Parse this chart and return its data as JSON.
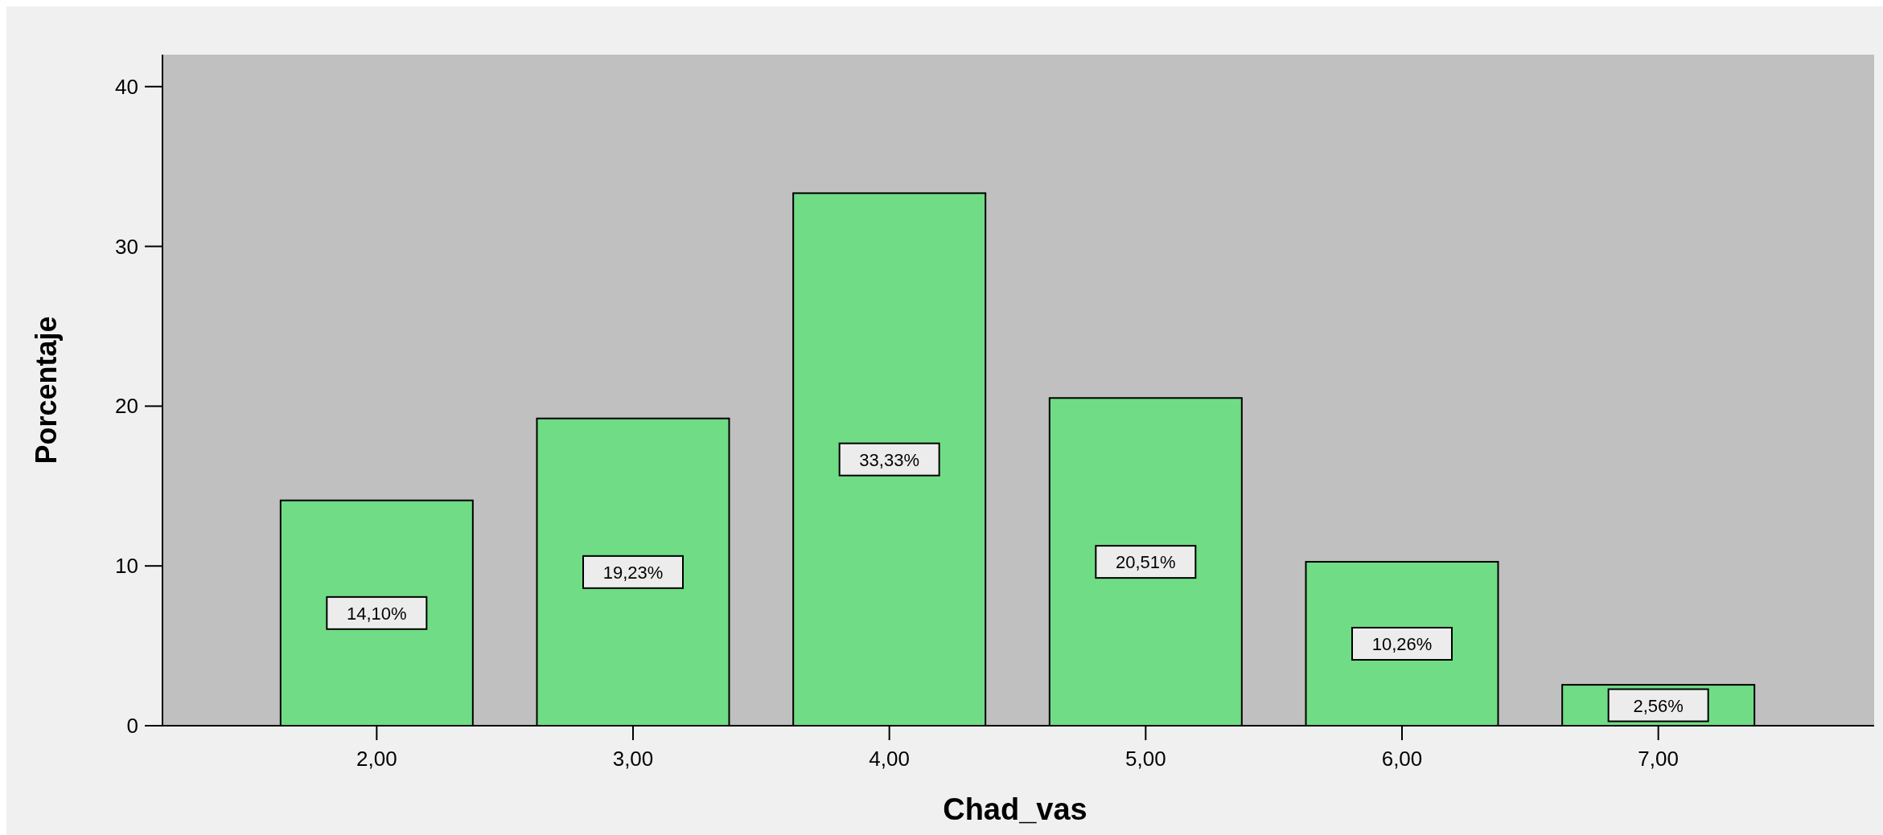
{
  "chart_data": {
    "type": "bar",
    "xlabel": "Chad_vas",
    "ylabel": "Porcentaje",
    "categories": [
      "2,00",
      "3,00",
      "4,00",
      "5,00",
      "6,00",
      "7,00"
    ],
    "values": [
      14.1,
      19.23,
      33.33,
      20.51,
      10.26,
      2.56
    ],
    "value_labels": [
      "14,10%",
      "19,23%",
      "33,33%",
      "20,51%",
      "10,26%",
      "2,56%"
    ],
    "color": "#70dc85",
    "ylim": [
      0,
      42
    ],
    "yticks": [
      0,
      10,
      20,
      30,
      40
    ],
    "grid": false
  }
}
